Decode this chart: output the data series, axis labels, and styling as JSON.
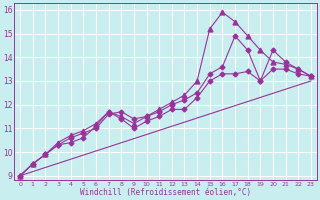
{
  "title": "",
  "xlabel": "Windchill (Refroidissement éolien,°C)",
  "xlim": [
    -0.5,
    23.5
  ],
  "ylim": [
    8.8,
    16.3
  ],
  "yticks": [
    9,
    10,
    11,
    12,
    13,
    14,
    15,
    16
  ],
  "xticks": [
    0,
    1,
    2,
    3,
    4,
    5,
    6,
    7,
    8,
    9,
    10,
    11,
    12,
    13,
    14,
    15,
    16,
    17,
    18,
    19,
    20,
    21,
    22,
    23
  ],
  "background_color": "#c8eef0",
  "grid_color": "#ffffff",
  "line_color": "#993399",
  "series": [
    {
      "x": [
        0,
        23
      ],
      "y": [
        9.0,
        13.0
      ],
      "marker": null,
      "markersize": 0
    },
    {
      "x": [
        0,
        1,
        2,
        3,
        4,
        5,
        6,
        7,
        8,
        9,
        10,
        11,
        12,
        13,
        14,
        15,
        16,
        17,
        18,
        19,
        20,
        21,
        22,
        23
      ],
      "y": [
        9.0,
        9.5,
        9.9,
        10.3,
        10.6,
        10.8,
        11.0,
        11.6,
        11.7,
        11.4,
        11.5,
        11.7,
        12.0,
        12.2,
        12.5,
        13.3,
        13.6,
        14.9,
        14.3,
        13.0,
        14.3,
        13.8,
        13.5,
        13.2
      ],
      "marker": "D",
      "markersize": 2.5
    },
    {
      "x": [
        0,
        1,
        2,
        3,
        4,
        5,
        6,
        7,
        8,
        9,
        10,
        11,
        12,
        13,
        14,
        15,
        16,
        17,
        18,
        19,
        20,
        21,
        22,
        23
      ],
      "y": [
        9.0,
        9.5,
        9.9,
        10.4,
        10.7,
        10.9,
        11.2,
        11.7,
        11.5,
        11.2,
        11.5,
        11.8,
        12.1,
        12.4,
        13.0,
        15.2,
        15.9,
        15.5,
        14.9,
        14.3,
        13.8,
        13.7,
        13.5,
        13.2
      ],
      "marker": "^",
      "markersize": 3.5
    },
    {
      "x": [
        0,
        1,
        2,
        3,
        4,
        5,
        6,
        7,
        8,
        9,
        10,
        11,
        12,
        13,
        14,
        15,
        16,
        17,
        18,
        19,
        20,
        21,
        22,
        23
      ],
      "y": [
        9.0,
        9.5,
        9.9,
        10.3,
        10.4,
        10.6,
        11.1,
        11.7,
        11.4,
        11.0,
        11.3,
        11.5,
        11.8,
        11.8,
        12.3,
        13.0,
        13.3,
        13.3,
        13.4,
        13.0,
        13.5,
        13.5,
        13.3,
        13.2
      ],
      "marker": "D",
      "markersize": 2.5
    }
  ]
}
